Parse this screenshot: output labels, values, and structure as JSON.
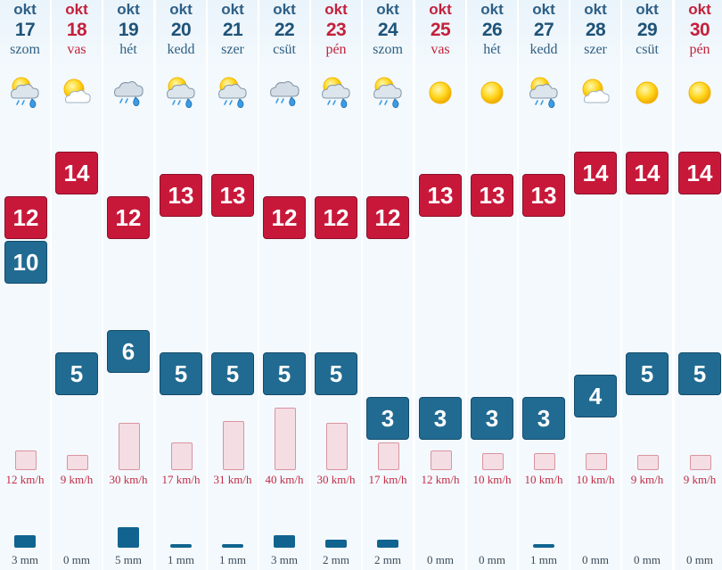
{
  "forecast": {
    "colors": {
      "max_box": "#c8183a",
      "min_box": "#216b92",
      "weekend_text": "#c4213b",
      "weekday_text": "#2e5e82",
      "wind": "#c22a43",
      "rain_bar": "#10648f"
    },
    "days": [
      {
        "month": "okt",
        "day": "17",
        "weekday": "szom",
        "weekend": false,
        "icon": "cloud-sun-rain-icon",
        "max": "12",
        "min": "10",
        "wind": "12 km/h",
        "wind_level": 12,
        "rain": "3 mm",
        "rain_level": 3
      },
      {
        "month": "okt",
        "day": "18",
        "weekday": "vas",
        "weekend": true,
        "icon": "sun-cloud-icon",
        "max": "14",
        "min": "5",
        "wind": "9 km/h",
        "wind_level": 9,
        "rain": "0 mm",
        "rain_level": 0
      },
      {
        "month": "okt",
        "day": "19",
        "weekday": "hét",
        "weekend": false,
        "icon": "cloud-rain-icon",
        "max": "12",
        "min": "6",
        "wind": "30 km/h",
        "wind_level": 30,
        "rain": "5 mm",
        "rain_level": 5
      },
      {
        "month": "okt",
        "day": "20",
        "weekday": "kedd",
        "weekend": false,
        "icon": "cloud-sun-rain-icon",
        "max": "13",
        "min": "5",
        "wind": "17 km/h",
        "wind_level": 17,
        "rain": "1 mm",
        "rain_level": 1
      },
      {
        "month": "okt",
        "day": "21",
        "weekday": "szer",
        "weekend": false,
        "icon": "cloud-sun-rain-icon",
        "max": "13",
        "min": "5",
        "wind": "31 km/h",
        "wind_level": 31,
        "rain": "1 mm",
        "rain_level": 1
      },
      {
        "month": "okt",
        "day": "22",
        "weekday": "csüt",
        "weekend": false,
        "icon": "cloud-rain-icon",
        "max": "12",
        "min": "5",
        "wind": "40 km/h",
        "wind_level": 40,
        "rain": "3 mm",
        "rain_level": 3
      },
      {
        "month": "okt",
        "day": "23",
        "weekday": "pén",
        "weekend": true,
        "icon": "cloud-sun-rain-icon",
        "max": "12",
        "min": "5",
        "wind": "30 km/h",
        "wind_level": 30,
        "rain": "2 mm",
        "rain_level": 2
      },
      {
        "month": "okt",
        "day": "24",
        "weekday": "szom",
        "weekend": false,
        "icon": "cloud-sun-rain-icon",
        "max": "12",
        "min": "3",
        "wind": "17 km/h",
        "wind_level": 17,
        "rain": "2 mm",
        "rain_level": 2
      },
      {
        "month": "okt",
        "day": "25",
        "weekday": "vas",
        "weekend": true,
        "icon": "sun-icon",
        "max": "13",
        "min": "3",
        "wind": "12 km/h",
        "wind_level": 12,
        "rain": "0 mm",
        "rain_level": 0
      },
      {
        "month": "okt",
        "day": "26",
        "weekday": "hét",
        "weekend": false,
        "icon": "sun-icon",
        "max": "13",
        "min": "3",
        "wind": "10 km/h",
        "wind_level": 10,
        "rain": "0 mm",
        "rain_level": 0
      },
      {
        "month": "okt",
        "day": "27",
        "weekday": "kedd",
        "weekend": false,
        "icon": "cloud-sun-rain-icon",
        "max": "13",
        "min": "3",
        "wind": "10 km/h",
        "wind_level": 10,
        "rain": "1 mm",
        "rain_level": 1
      },
      {
        "month": "okt",
        "day": "28",
        "weekday": "szer",
        "weekend": false,
        "icon": "sun-cloud-icon",
        "max": "14",
        "min": "4",
        "wind": "10 km/h",
        "wind_level": 10,
        "rain": "0 mm",
        "rain_level": 0
      },
      {
        "month": "okt",
        "day": "29",
        "weekday": "csüt",
        "weekend": false,
        "icon": "sun-icon",
        "max": "14",
        "min": "5",
        "wind": "9 km/h",
        "wind_level": 9,
        "rain": "0 mm",
        "rain_level": 0
      },
      {
        "month": "okt",
        "day": "30",
        "weekday": "pén",
        "weekend": true,
        "icon": "sun-icon",
        "max": "14",
        "min": "5",
        "wind": "9 km/h",
        "wind_level": 9,
        "rain": "0 mm",
        "rain_level": 0
      }
    ]
  }
}
